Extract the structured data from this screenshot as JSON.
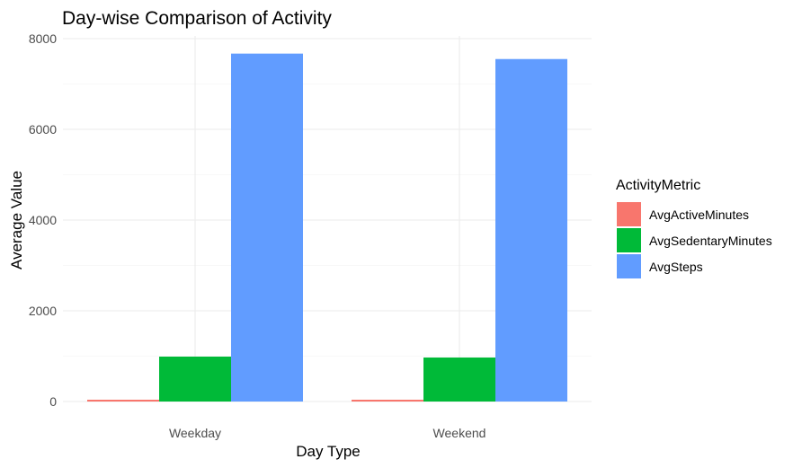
{
  "chart_data": {
    "type": "bar",
    "title": "Day-wise Comparison of Activity",
    "xlabel": "Day Type",
    "ylabel": "Average Value",
    "categories": [
      "Weekday",
      "Weekend"
    ],
    "ylim": [
      0,
      8000
    ],
    "yticks": [
      0,
      2000,
      4000,
      6000,
      8000
    ],
    "grid": true,
    "legend": {
      "title": "ActivityMetric",
      "position": "right"
    },
    "series": [
      {
        "name": "AvgActiveMinutes",
        "color": "#F8766D",
        "values": [
          40,
          40
        ]
      },
      {
        "name": "AvgSedentaryMinutes",
        "color": "#00BA38",
        "values": [
          990,
          970
        ]
      },
      {
        "name": "AvgSteps",
        "color": "#619CFF",
        "values": [
          7670,
          7550
        ]
      }
    ]
  }
}
